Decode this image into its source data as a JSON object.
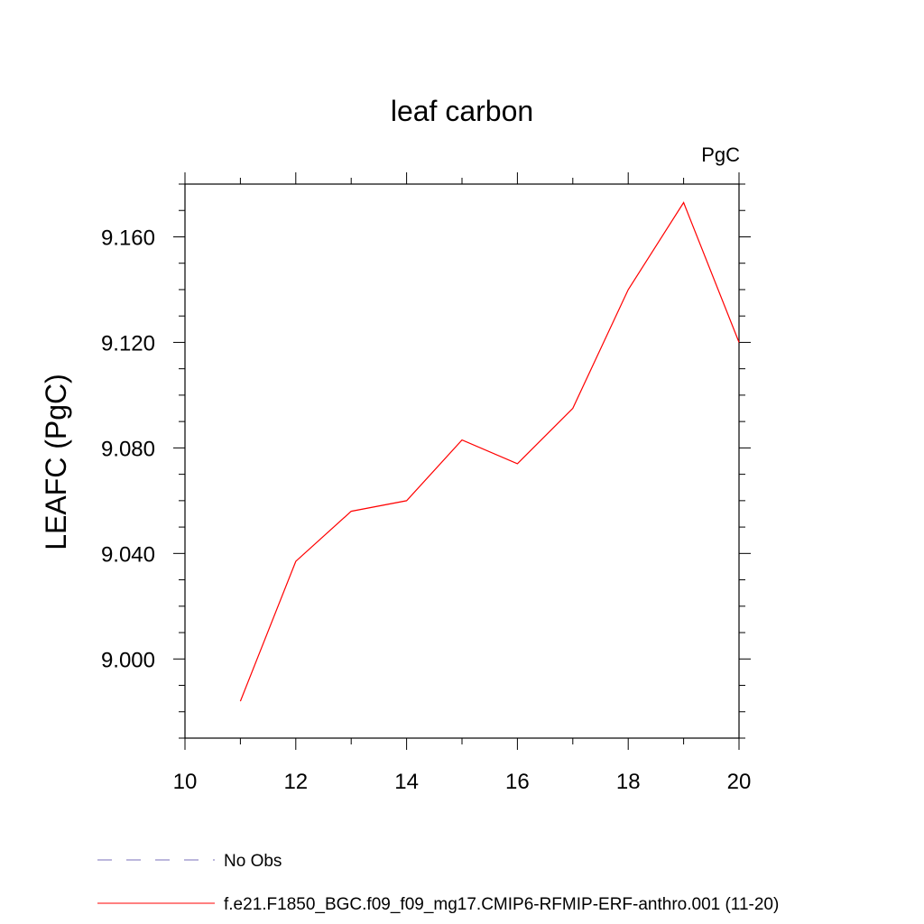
{
  "chart_data": {
    "type": "line",
    "title": "leaf carbon",
    "units_label": "PgC",
    "xlabel": "",
    "ylabel": "LEAFC  (PgC)",
    "xlim": [
      10,
      20
    ],
    "ylim": [
      8.97,
      9.18
    ],
    "x_ticks": [
      10,
      12,
      14,
      16,
      18,
      20
    ],
    "x_tick_labels": [
      "10",
      "12",
      "14",
      "16",
      "18",
      "20"
    ],
    "y_ticks": [
      9.0,
      9.04,
      9.08,
      9.12,
      9.16
    ],
    "y_tick_labels": [
      "9.000",
      "9.040",
      "9.080",
      "9.120",
      "9.160"
    ],
    "grid": false,
    "legend_position": "bottom-left",
    "series": [
      {
        "name": "f.e21.F1850_BGC.f09_f09_mg17.CMIP6-RFMIP-ERF-anthro.001 (11-20)",
        "color": "#ff0000",
        "dash": "solid",
        "x": [
          11,
          12,
          13,
          14,
          15,
          16,
          17,
          18,
          19,
          20
        ],
        "y": [
          8.984,
          9.037,
          9.056,
          9.06,
          9.083,
          9.074,
          9.095,
          9.14,
          9.173,
          9.12
        ]
      }
    ],
    "legend": [
      {
        "label": "No Obs",
        "color": "#7a6fb8",
        "dash": "dashed"
      },
      {
        "label": "f.e21.F1850_BGC.f09_f09_mg17.CMIP6-RFMIP-ERF-anthro.001 (11-20)",
        "color": "#ff0000",
        "dash": "solid"
      }
    ]
  }
}
